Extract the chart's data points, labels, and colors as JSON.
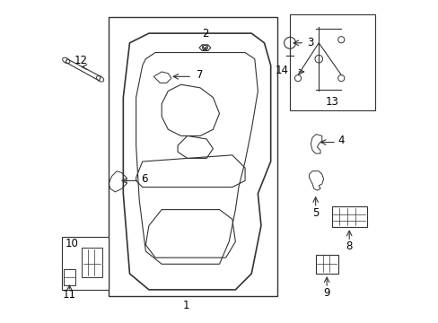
{
  "background_color": "#ffffff",
  "fig_width": 4.89,
  "fig_height": 3.6,
  "dpi": 100,
  "line_color": "#333333",
  "text_color": "#000000",
  "label_fontsize": 8.5
}
